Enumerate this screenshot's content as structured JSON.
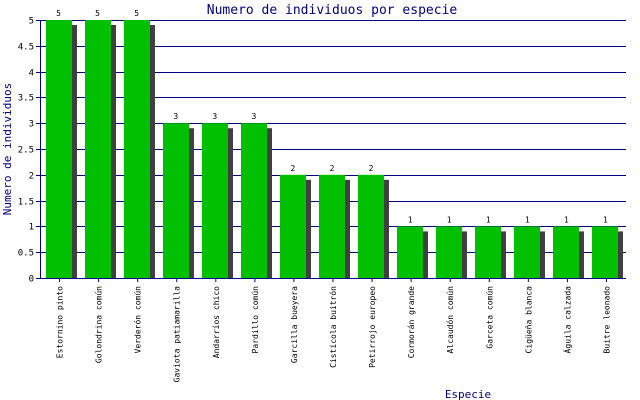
{
  "chart_data": {
    "type": "bar",
    "title": "Numero de individuos por especie",
    "xlabel": "Especie",
    "ylabel": "Numero de individuos",
    "ylim": [
      0,
      5
    ],
    "yticks": [
      "0",
      "0.5",
      "1",
      "1.5",
      "2",
      "2.5",
      "3",
      "3.5",
      "4",
      "4.5",
      "5"
    ],
    "grid": true,
    "categories": [
      "Estornino pinto",
      "Golondrina común",
      "Verderón común",
      "Gaviota patiamarilla",
      "Andarríos chico",
      "Pardillo común",
      "Garcilla bueyera",
      "Cistícola buitrón",
      "Petirrojo europeo",
      "Cormorán grande",
      "Alcaudón común",
      "Garceta común",
      "Cigüeña blanca",
      "Águila calzada",
      "Buitre leonado"
    ],
    "values": [
      5,
      5,
      5,
      3,
      3,
      3,
      2,
      2,
      2,
      1,
      1,
      1,
      1,
      1,
      1
    ],
    "data_labels": [
      "5",
      "5",
      "5",
      "3",
      "3",
      "3",
      "2",
      "2",
      "2",
      "1",
      "1",
      "1",
      "1",
      "1",
      "1"
    ],
    "colors": {
      "bar": "#00c000",
      "shadow": "#404040",
      "grid": "#000080",
      "axis": "#000080",
      "title": "#000080"
    }
  }
}
